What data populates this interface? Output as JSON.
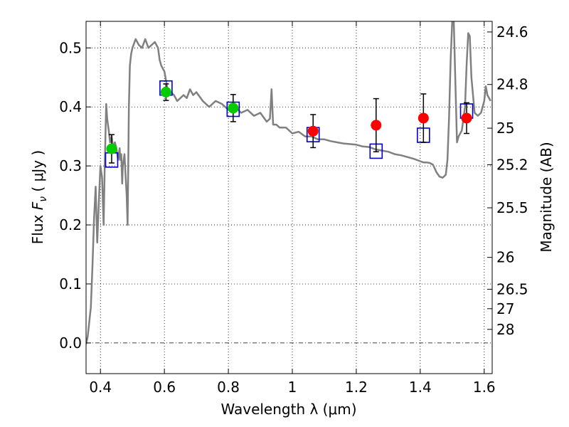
{
  "chart_data": {
    "type": "scatter",
    "xlabel": "Wavelength  λ (μm)",
    "ylabel": "Flux  Fν  ( μJy )",
    "ylabel_parts": {
      "pre": "Flux  ",
      "var": "F",
      "sub": "ν",
      "post": "  ( μJy )"
    },
    "y2label": "Magnitude (AB)",
    "xlim": [
      0.355,
      1.625
    ],
    "ylim": [
      -0.052,
      0.545
    ],
    "grid": true,
    "xticks": [
      {
        "v": 0.4,
        "label": "0.4"
      },
      {
        "v": 0.6,
        "label": "0.6"
      },
      {
        "v": 0.8,
        "label": "0.8"
      },
      {
        "v": 1.0,
        "label": "1"
      },
      {
        "v": 1.2,
        "label": "1.2"
      },
      {
        "v": 1.4,
        "label": "1.4"
      },
      {
        "v": 1.6,
        "label": "1.6"
      }
    ],
    "yticks": [
      {
        "v": 0.0,
        "label": "0.0"
      },
      {
        "v": 0.1,
        "label": "0.1"
      },
      {
        "v": 0.2,
        "label": "0.2"
      },
      {
        "v": 0.3,
        "label": "0.3"
      },
      {
        "v": 0.4,
        "label": "0.4"
      },
      {
        "v": 0.5,
        "label": "0.5"
      }
    ],
    "y2ticks": [
      {
        "flux": 0.527,
        "label": "24.6"
      },
      {
        "flux": 0.438,
        "label": "24.8"
      },
      {
        "flux": 0.364,
        "label": "25"
      },
      {
        "flux": 0.302,
        "label": "25.2"
      },
      {
        "flux": 0.229,
        "label": "25.5"
      },
      {
        "flux": 0.145,
        "label": "26"
      },
      {
        "flux": 0.091,
        "label": "26.5"
      },
      {
        "flux": 0.058,
        "label": "27"
      },
      {
        "flux": 0.023,
        "label": "28"
      }
    ],
    "model_sed": {
      "color": "#808080",
      "x": [
        0.355,
        0.36,
        0.37,
        0.375,
        0.38,
        0.385,
        0.39,
        0.395,
        0.4,
        0.405,
        0.41,
        0.413,
        0.418,
        0.421,
        0.426,
        0.43,
        0.435,
        0.44,
        0.445,
        0.45,
        0.455,
        0.46,
        0.462,
        0.465,
        0.468,
        0.47,
        0.475,
        0.478,
        0.482,
        0.485,
        0.487,
        0.489,
        0.492,
        0.496,
        0.5,
        0.51,
        0.52,
        0.53,
        0.54,
        0.55,
        0.56,
        0.57,
        0.58,
        0.585,
        0.59,
        0.6,
        0.605,
        0.61,
        0.62,
        0.63,
        0.64,
        0.65,
        0.66,
        0.67,
        0.68,
        0.69,
        0.7,
        0.72,
        0.74,
        0.76,
        0.78,
        0.8,
        0.82,
        0.84,
        0.86,
        0.88,
        0.9,
        0.92,
        0.93,
        0.935,
        0.94,
        0.95,
        0.96,
        0.98,
        1.0,
        1.02,
        1.04,
        1.06,
        1.08,
        1.1,
        1.12,
        1.14,
        1.16,
        1.2,
        1.22,
        1.24,
        1.26,
        1.28,
        1.3,
        1.32,
        1.34,
        1.36,
        1.38,
        1.4,
        1.41,
        1.42,
        1.43,
        1.44,
        1.45,
        1.46,
        1.47,
        1.48,
        1.485,
        1.49,
        1.495,
        1.5,
        1.505,
        1.51,
        1.515,
        1.52,
        1.53,
        1.54,
        1.545,
        1.55,
        1.555,
        1.56,
        1.57,
        1.58,
        1.59,
        1.6,
        1.605,
        1.61,
        1.62
      ],
      "y": [
        -0.002,
        0.01,
        0.06,
        0.13,
        0.21,
        0.265,
        0.17,
        0.24,
        0.3,
        0.28,
        0.2,
        0.29,
        0.405,
        0.38,
        0.36,
        0.34,
        0.35,
        0.33,
        0.34,
        0.33,
        0.31,
        0.33,
        0.31,
        0.32,
        0.27,
        0.3,
        0.32,
        0.29,
        0.25,
        0.2,
        0.3,
        0.4,
        0.47,
        0.49,
        0.5,
        0.515,
        0.505,
        0.5,
        0.515,
        0.5,
        0.505,
        0.51,
        0.5,
        0.48,
        0.47,
        0.46,
        0.445,
        0.43,
        0.425,
        0.42,
        0.41,
        0.415,
        0.42,
        0.415,
        0.43,
        0.42,
        0.425,
        0.41,
        0.4,
        0.41,
        0.405,
        0.395,
        0.4,
        0.39,
        0.395,
        0.385,
        0.39,
        0.375,
        0.38,
        0.43,
        0.37,
        0.37,
        0.365,
        0.365,
        0.355,
        0.358,
        0.35,
        0.35,
        0.345,
        0.345,
        0.342,
        0.34,
        0.338,
        0.336,
        0.333,
        0.332,
        0.328,
        0.326,
        0.324,
        0.32,
        0.318,
        0.315,
        0.312,
        0.308,
        0.306,
        0.306,
        0.305,
        0.302,
        0.29,
        0.282,
        0.28,
        0.285,
        0.31,
        0.38,
        0.48,
        0.545,
        0.545,
        0.44,
        0.34,
        0.35,
        0.36,
        0.4,
        0.47,
        0.525,
        0.52,
        0.45,
        0.39,
        0.385,
        0.39,
        0.41,
        0.435,
        0.42,
        0.41
      ]
    },
    "model_photometry": {
      "color": "#0000cc",
      "x": [
        0.435,
        0.605,
        0.815,
        1.065,
        1.262,
        1.41,
        1.545
      ],
      "y": [
        0.31,
        0.432,
        0.396,
        0.353,
        0.325,
        0.352,
        0.393
      ]
    },
    "observed": [
      {
        "x": 0.435,
        "y": 0.329,
        "err": 0.024,
        "color": "#00cc00"
      },
      {
        "x": 0.605,
        "y": 0.425,
        "err": 0.014,
        "color": "#00cc00"
      },
      {
        "x": 0.815,
        "y": 0.398,
        "err": 0.023,
        "color": "#00cc00"
      },
      {
        "x": 1.065,
        "y": 0.359,
        "err": 0.028,
        "color": "#ff0000"
      },
      {
        "x": 1.262,
        "y": 0.369,
        "err": 0.045,
        "color": "#ff0000"
      },
      {
        "x": 1.41,
        "y": 0.381,
        "err": 0.041,
        "color": "#ff0000"
      },
      {
        "x": 1.545,
        "y": 0.381,
        "err": 0.026,
        "color": "#ff0000"
      }
    ]
  }
}
